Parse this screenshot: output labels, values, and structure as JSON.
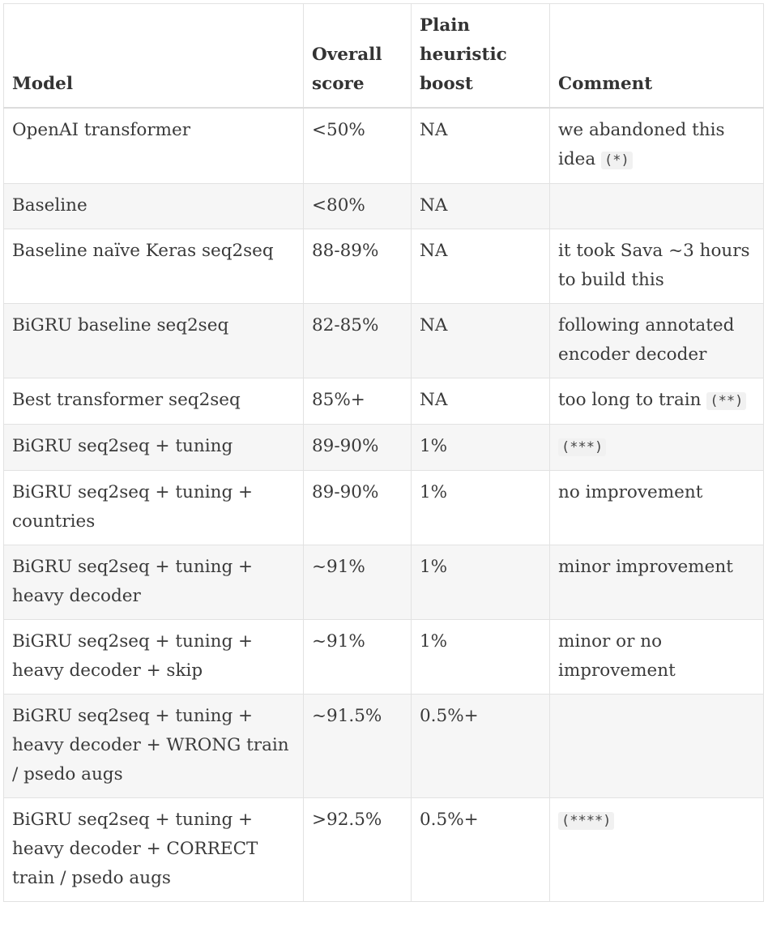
{
  "headers": {
    "model": "Model",
    "score": "Overall score",
    "boost": "Plain heuristic boost",
    "comment": "Comment"
  },
  "rows": [
    {
      "model": "OpenAI transformer",
      "score": "<50%",
      "boost": "NA",
      "comment_text": "we abandoned this idea",
      "comment_code": "(*)"
    },
    {
      "model": "Baseline",
      "score": "<80%",
      "boost": "NA",
      "comment_text": "",
      "comment_code": ""
    },
    {
      "model": "Baseline naïve Keras seq2seq",
      "score": "88-89%",
      "boost": "NA",
      "comment_text": "it took Sava ~3 hours to build this",
      "comment_code": ""
    },
    {
      "model": "BiGRU baseline seq2seq",
      "score": "82-85%",
      "boost": "NA",
      "comment_text": "following annotated encoder decoder",
      "comment_code": ""
    },
    {
      "model": "Best transformer seq2seq",
      "score": "85%+",
      "boost": "NA",
      "comment_text": "too long to train",
      "comment_code": "(**)"
    },
    {
      "model": "BiGRU seq2seq + tuning",
      "score": "89-90%",
      "boost": "1%",
      "comment_text": "",
      "comment_code": "(***)"
    },
    {
      "model": "BiGRU seq2seq + tuning + countries",
      "score": "89-90%",
      "boost": "1%",
      "comment_text": "no improvement",
      "comment_code": ""
    },
    {
      "model": "BiGRU seq2seq + tuning + heavy decoder",
      "score": "~91%",
      "boost": "1%",
      "comment_text": "minor improvement",
      "comment_code": ""
    },
    {
      "model": "BiGRU seq2seq + tuning + heavy decoder + skip",
      "score": "~91%",
      "boost": "1%",
      "comment_text": "minor or no improvement",
      "comment_code": ""
    },
    {
      "model": "BiGRU seq2seq + tuning + heavy decoder + WRONG train / psedo augs",
      "score": "~91.5%",
      "boost": "0.5%+",
      "comment_text": "",
      "comment_code": ""
    },
    {
      "model": "BiGRU seq2seq + tuning + heavy decoder + CORRECT train / psedo augs",
      "score": ">92.5%",
      "boost": "0.5%+",
      "comment_text": "",
      "comment_code": "(****)"
    }
  ]
}
